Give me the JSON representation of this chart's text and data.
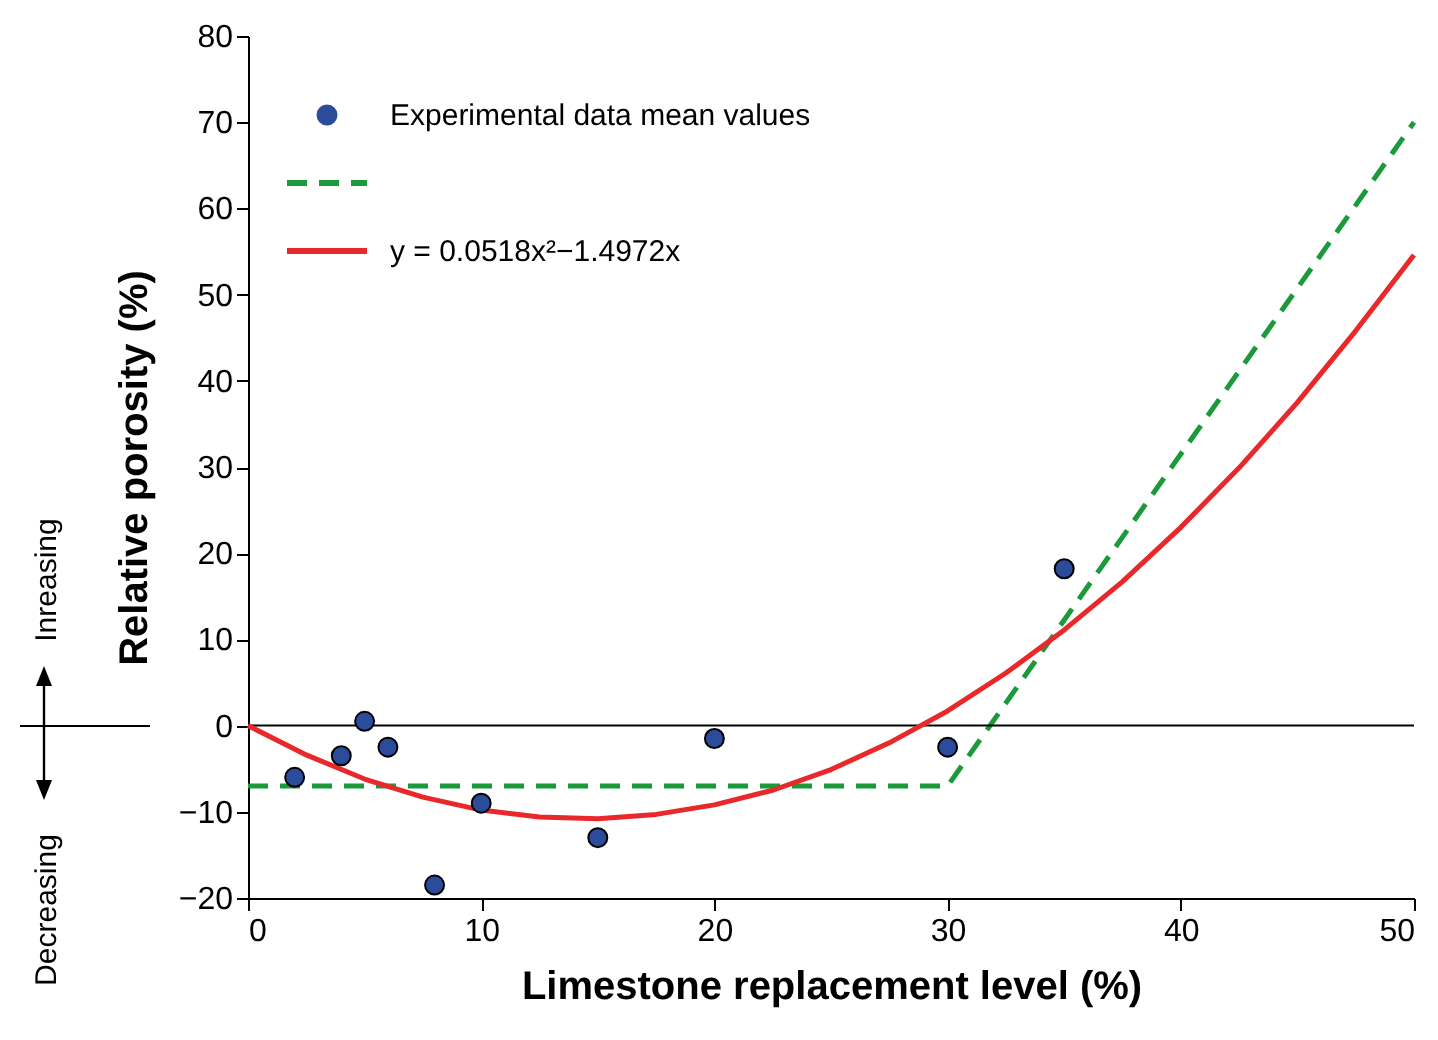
{
  "chart_data": {
    "type": "scatter",
    "xlabel": "Limestone replacement level (%)",
    "ylabel": "Relative porosity (%)",
    "xlim": [
      0,
      50
    ],
    "xticks": [
      0,
      10,
      20,
      30,
      40,
      50
    ],
    "ylim": [
      -20,
      80
    ],
    "yticks": [
      -20,
      -10,
      0,
      10,
      20,
      30,
      40,
      50,
      60,
      70,
      80
    ],
    "grid": false,
    "legend": "top left",
    "series": [
      {
        "name": "Experimental data mean values",
        "marker": "circle",
        "color": "#2b4c9b",
        "x": [
          2,
          4,
          5,
          6,
          8,
          10,
          15,
          20,
          30,
          35
        ],
        "values": [
          -6,
          -3.5,
          0.5,
          -2.5,
          -18.5,
          -9,
          -13,
          -1.5,
          -2.5,
          18.2
        ]
      },
      {
        "type": "line",
        "line_style": "dashed",
        "color": "#1a9a3a",
        "x": [
          0,
          30,
          50
        ],
        "values": [
          -7,
          -7,
          70
        ]
      },
      {
        "name": "y = 0.0518x²−1.4972x",
        "type": "line",
        "line_style": "solid",
        "color": "#e8282a",
        "x": [
          0,
          2.5,
          5,
          7.5,
          10,
          12.5,
          15,
          17.5,
          20,
          22.5,
          25,
          27.5,
          30,
          32.5,
          35,
          37.5,
          40,
          42.5,
          45,
          47.5,
          50
        ],
        "values": [
          0,
          -3.4,
          -6.2,
          -8.3,
          -9.8,
          -10.6,
          -10.8,
          -10.3,
          -9.2,
          -7.5,
          -5.1,
          -2,
          1.7,
          6.1,
          11.1,
          16.7,
          23,
          29.9,
          37.5,
          45.8,
          54.6
        ]
      }
    ],
    "ref_lines": [
      {
        "axis": "y",
        "value": 0,
        "color": "#000000"
      }
    ],
    "annotations": [
      "Inreasing",
      "Decreasing"
    ]
  }
}
